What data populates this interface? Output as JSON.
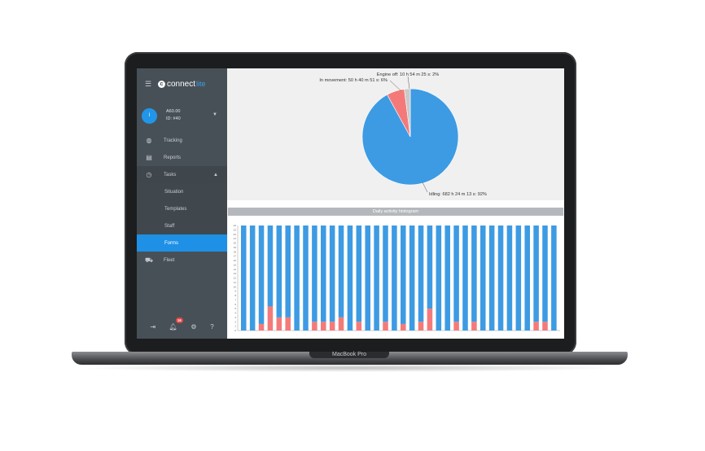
{
  "device": {
    "brand": "MacBook Pro"
  },
  "sidebar": {
    "menu_icon": "hamburger-icon",
    "logo": {
      "mark": "c",
      "text": "connect",
      "suffix": "lite"
    },
    "user": {
      "avatar": "I",
      "name": "A60.00",
      "id": "ID: #40"
    },
    "items": [
      {
        "label": "Tracking",
        "icon": "globe-icon"
      },
      {
        "label": "Reports",
        "icon": "chart-icon"
      },
      {
        "label": "Tasks",
        "icon": "clock-icon"
      },
      {
        "label": "Situation"
      },
      {
        "label": "Templates"
      },
      {
        "label": "Staff"
      },
      {
        "label": "Forms"
      },
      {
        "label": "Fleet",
        "icon": "car-icon"
      }
    ],
    "notifications_count": "16",
    "accent_color": "#1e90e6"
  },
  "pie": {
    "labels": {
      "engine_off": "Engine off: 10 h 54 m 25 s: 2%",
      "in_movement": "In movement: 50 h 40 m 51 s: 6%",
      "idling": "Idling: 682 h 24 m 13 s: 92%"
    }
  },
  "histogram": {
    "title": "Daily activity histogram"
  },
  "chart_data": [
    {
      "type": "pie",
      "categories": [
        "Idling",
        "In movement",
        "Engine off"
      ],
      "values": [
        92,
        6,
        2
      ],
      "colors": [
        "#3d9be3",
        "#f47a7a",
        "#c9c9c9"
      ]
    },
    {
      "type": "bar",
      "stacked": true,
      "ylim": [
        0,
        24
      ],
      "yticks": [
        0,
        1,
        2,
        3,
        4,
        5,
        6,
        7,
        8,
        9,
        10,
        11,
        12,
        13,
        14,
        15,
        16,
        17,
        18,
        19,
        20,
        21,
        22,
        23,
        24
      ],
      "series": [
        {
          "color": "#3d9be3",
          "values": [
            24,
            24,
            22.5,
            18.5,
            21,
            21,
            24,
            24,
            22,
            22,
            22,
            21,
            24,
            22,
            24,
            24,
            22,
            24,
            22.5,
            24,
            22,
            19,
            24,
            24,
            22,
            24,
            22,
            24,
            24,
            24,
            24,
            24,
            24,
            22,
            22,
            24
          ]
        },
        {
          "color": "#f47a7a",
          "values": [
            0,
            0,
            1.5,
            5.5,
            3,
            3,
            0,
            0,
            2,
            2,
            2,
            3,
            0,
            2,
            0,
            0,
            2,
            0,
            1.5,
            0,
            2,
            5,
            0,
            0,
            2,
            0,
            2,
            0,
            0,
            0,
            0,
            0,
            0,
            2,
            2,
            0
          ]
        }
      ]
    }
  ]
}
